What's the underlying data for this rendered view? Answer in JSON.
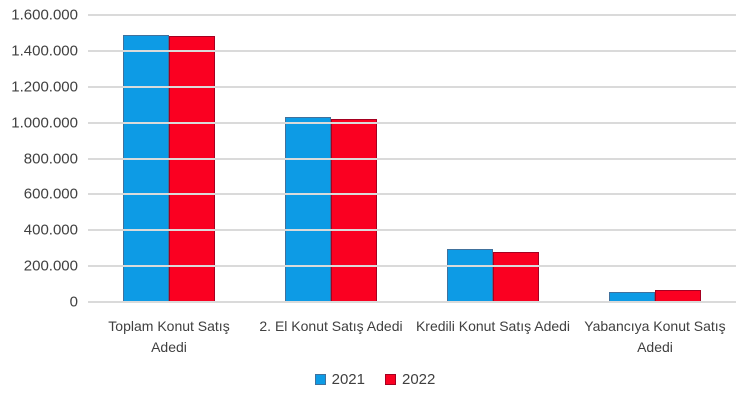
{
  "chart_data": {
    "type": "bar",
    "title": "",
    "xlabel": "",
    "ylabel": "",
    "categories": [
      "Toplam Konut Satış Adedi",
      "2. El Konut Satış Adedi",
      "Kredili Konut Satış Adedi",
      "Yabancıya Konut Satış Adedi"
    ],
    "series": [
      {
        "name": "2021",
        "color": "#0D9BE5",
        "border_color": "#41719C",
        "values": [
          1490000,
          1030000,
          295000,
          58000
        ]
      },
      {
        "name": "2022",
        "color": "#FA0021",
        "border_color": "#A50021",
        "values": [
          1485000,
          1022000,
          281000,
          67000
        ]
      }
    ],
    "ylim": [
      0,
      1600000
    ],
    "ytick_step": 200000,
    "ytick_labels": [
      "0",
      "200.000",
      "400.000",
      "600.000",
      "800.000",
      "1.000.000",
      "1.200.000",
      "1.400.000",
      "1.600.000"
    ],
    "grid": true,
    "grid_color": "#DADADA",
    "axis_text_color": "#404040",
    "legend_position": "bottom"
  }
}
